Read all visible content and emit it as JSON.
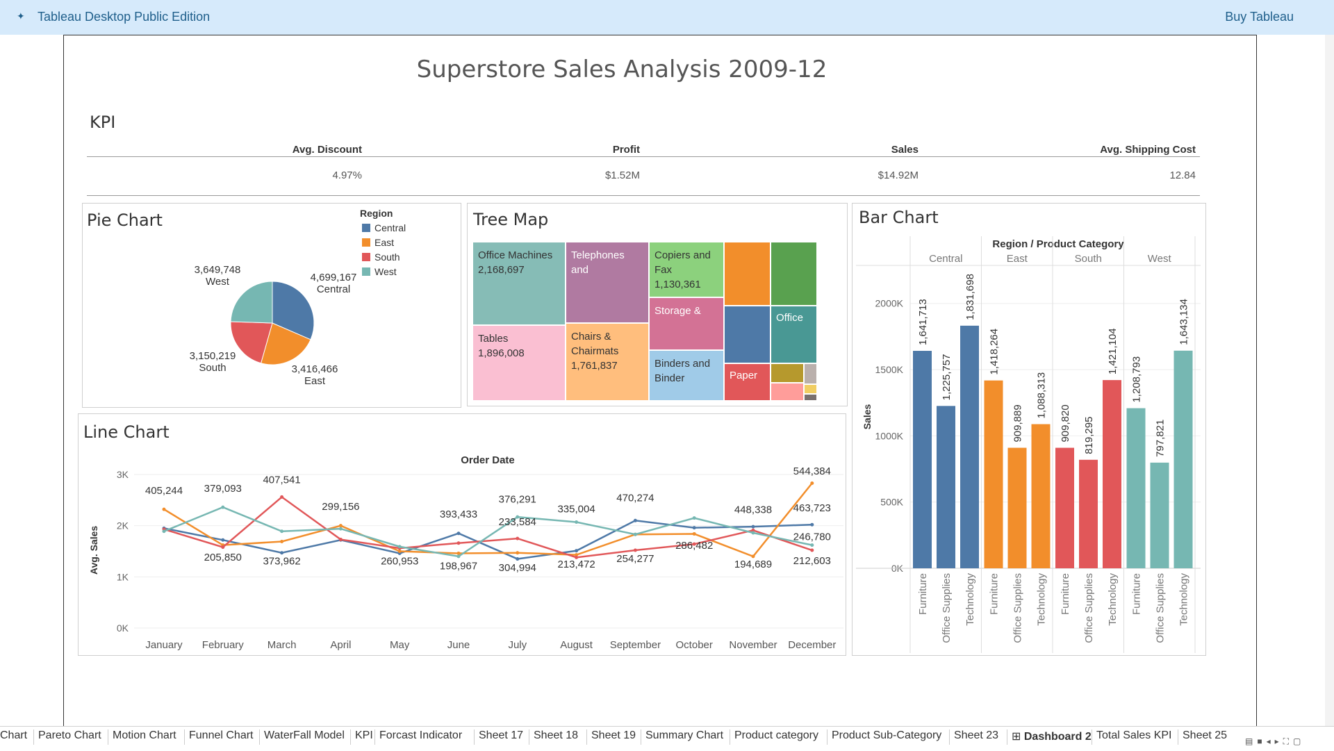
{
  "app": {
    "title": "Tableau Desktop Public Edition",
    "buy_label": "Buy Tableau",
    "dashboard_title": "Superstore Sales Analysis 2009-12"
  },
  "kpi": {
    "title": "KPI",
    "items": [
      {
        "label": "Avg. Discount",
        "value": "4.97%"
      },
      {
        "label": "Profit",
        "value": "$1.52M"
      },
      {
        "label": "Sales",
        "value": "$14.92M"
      },
      {
        "label": "Avg. Shipping Cost",
        "value": "12.84"
      }
    ]
  },
  "colors": {
    "central": "#4e79a7",
    "east": "#f28e2b",
    "south": "#e15759",
    "west": "#76b7b2"
  },
  "pie": {
    "title": "Pie Chart",
    "legend_title": "Region",
    "legend": [
      "Central",
      "East",
      "South",
      "West"
    ],
    "labels": [
      {
        "value": "4,699,167",
        "name": "Central"
      },
      {
        "value": "3,416,466",
        "name": "East"
      },
      {
        "value": "3,150,219",
        "name": "South"
      },
      {
        "value": "3,649,748",
        "name": "West"
      }
    ]
  },
  "treemap": {
    "title": "Tree Map",
    "cells": [
      {
        "name": "Office Machines",
        "value": "2,168,697",
        "color": "#86bcb6"
      },
      {
        "name": "Telephones and",
        "value": "",
        "color": "#b07aa1"
      },
      {
        "name": "Copiers and Fax",
        "value": "1,130,361",
        "color": "#8cd17d"
      },
      {
        "name": "Tables",
        "value": "1,896,008",
        "color": "#fabfd2"
      },
      {
        "name": "Chairs & Chairmats",
        "value": "1,761,837",
        "color": "#ffbe7d"
      },
      {
        "name": "Storage &",
        "value": "",
        "color": "#d37295"
      },
      {
        "name": "Binders and Binder",
        "value": "",
        "color": "#a0cbe8"
      },
      {
        "name": "Office",
        "value": "",
        "color": "#499894"
      },
      {
        "name": "Paper",
        "value": "",
        "color": "#e15759"
      }
    ]
  },
  "line": {
    "title": "Line Chart",
    "top_label": "Order Date",
    "ylabel": "Avg. Sales",
    "yticks": [
      "0K",
      "1K",
      "2K",
      "3K"
    ],
    "data_labels": [
      "405,244",
      "379,093",
      "407,541",
      "299,156",
      "393,433",
      "376,291",
      "335,004",
      "470,274",
      "448,338",
      "544,384",
      "205,850",
      "373,962",
      "260,953",
      "198,967",
      "304,994",
      "233,584",
      "213,472",
      "254,277",
      "286,482",
      "194,689",
      "463,723",
      "246,780",
      "212,603"
    ]
  },
  "bar": {
    "title": "Bar Chart",
    "header": "Region  /  Product Category",
    "ylabel": "Sales",
    "yticks": [
      "0K",
      "500K",
      "1000K",
      "1500K",
      "2000K"
    ]
  },
  "chart_data": [
    {
      "type": "pie",
      "title": "Pie Chart",
      "legend_title": "Region",
      "categories": [
        "Central",
        "East",
        "South",
        "West"
      ],
      "values": [
        4699167,
        3416466,
        3150219,
        3649748
      ]
    },
    {
      "type": "treemap",
      "title": "Tree Map",
      "categories": [
        "Office Machines",
        "Tables",
        "Telephones and",
        "Chairs & Chairmats",
        "Copiers and Fax"
      ],
      "values": [
        2168697,
        1896008,
        null,
        1761837,
        1130361
      ]
    },
    {
      "type": "line",
      "title": "Line Chart",
      "xlabel": "Order Date",
      "ylabel": "Avg. Sales",
      "x": [
        "January",
        "February",
        "March",
        "April",
        "May",
        "June",
        "July",
        "August",
        "September",
        "October",
        "November",
        "December"
      ],
      "ylim": [
        0,
        3000
      ],
      "series": [
        {
          "name": "Central",
          "values": [
            1950,
            1720,
            1470,
            1720,
            1460,
            1850,
            1350,
            1510,
            2100,
            1960,
            1980,
            2020
          ]
        },
        {
          "name": "East",
          "values": [
            2320,
            1620,
            1690,
            2000,
            1500,
            1460,
            1470,
            1430,
            1830,
            1840,
            1400,
            2830
          ]
        },
        {
          "name": "South",
          "values": [
            1930,
            1580,
            2560,
            1730,
            1560,
            1660,
            1750,
            1380,
            1520,
            1640,
            1910,
            1520
          ]
        },
        {
          "name": "West",
          "values": [
            1890,
            2360,
            1890,
            1940,
            1590,
            1400,
            2170,
            2070,
            1830,
            2150,
            1860,
            1620
          ]
        }
      ]
    },
    {
      "type": "bar",
      "title": "Bar Chart",
      "xlabel": "Region / Product Category",
      "ylabel": "Sales",
      "ylim": [
        0,
        2350000
      ],
      "groups": [
        "Central",
        "East",
        "South",
        "West"
      ],
      "categories": [
        "Furniture",
        "Office Supplies",
        "Technology"
      ],
      "series": [
        {
          "name": "Central",
          "values": [
            1641713,
            1225757,
            1831698
          ]
        },
        {
          "name": "East",
          "values": [
            1418264,
            909889,
            1088313
          ]
        },
        {
          "name": "South",
          "values": [
            909820,
            819295,
            1421104
          ]
        },
        {
          "name": "West",
          "values": [
            1208793,
            797821,
            1643134
          ]
        }
      ]
    }
  ],
  "tabs": [
    {
      "label": "Chart",
      "active": false
    },
    {
      "label": "Pareto Chart",
      "active": false
    },
    {
      "label": "Motion Chart",
      "active": false
    },
    {
      "label": "Funnel Chart",
      "active": false
    },
    {
      "label": "WaterFall Model",
      "active": false
    },
    {
      "label": "KPI",
      "active": false
    },
    {
      "label": "Forcast Indicator",
      "active": false
    },
    {
      "label": "Sheet 17",
      "active": false
    },
    {
      "label": "Sheet 18",
      "active": false
    },
    {
      "label": "Sheet 19",
      "active": false
    },
    {
      "label": "Summary Chart",
      "active": false
    },
    {
      "label": "Product category",
      "active": false
    },
    {
      "label": "Product Sub-Category",
      "active": false
    },
    {
      "label": "Sheet 23",
      "active": false
    },
    {
      "label": "Dashboard 2",
      "active": true
    },
    {
      "label": "Total Sales KPI",
      "active": false
    },
    {
      "label": "Sheet 25",
      "active": false
    }
  ]
}
